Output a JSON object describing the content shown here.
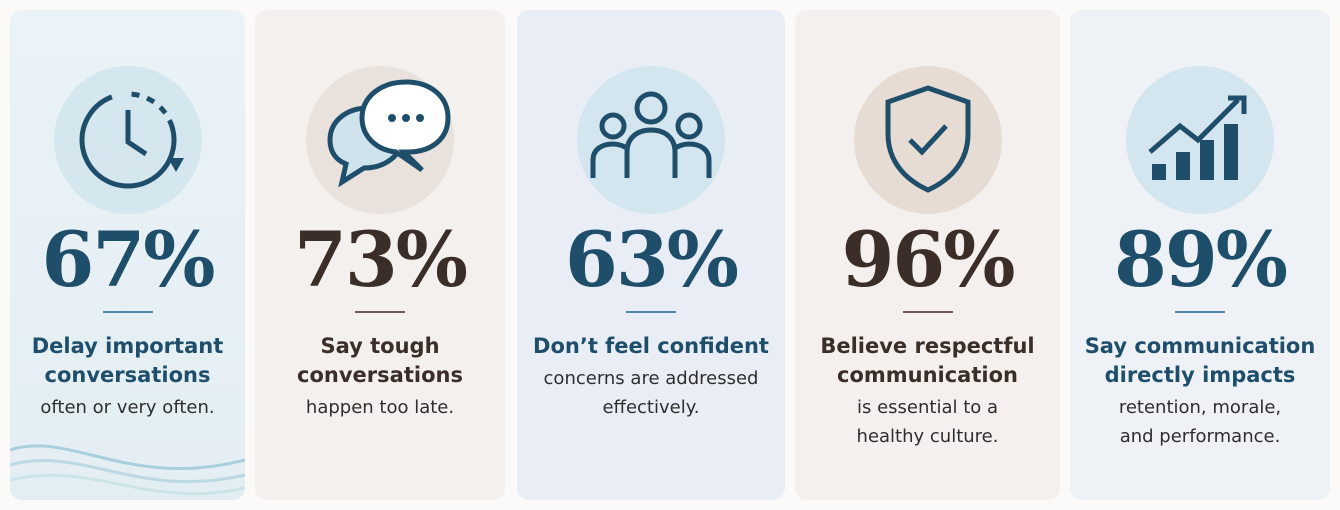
{
  "cards": [
    {
      "stat": "67%",
      "headline": [
        "Delay important",
        "conversations"
      ],
      "body": [
        "often or very often."
      ]
    },
    {
      "stat": "73%",
      "headline": [
        "Say tough",
        "conversations"
      ],
      "body": [
        "happen too late."
      ]
    },
    {
      "stat": "63%",
      "headline": [
        "Don’t feel confident"
      ],
      "body": [
        "concerns are addressed",
        "effectively."
      ]
    },
    {
      "stat": "96%",
      "headline": [
        "Believe respectful",
        "communication"
      ],
      "body": [
        "is essential to a",
        "healthy culture."
      ]
    },
    {
      "stat": "89%",
      "headline": [
        "Say communication",
        "directly impacts"
      ],
      "body": [
        "retention, morale,",
        "and performance."
      ]
    }
  ]
}
